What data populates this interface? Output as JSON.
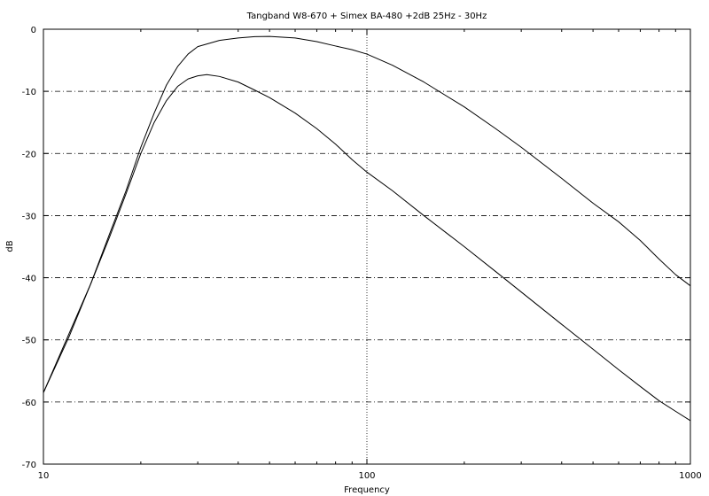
{
  "chart_data": {
    "type": "line",
    "title": "Tangband W8-670 + Simex BA-480 +2dB 25Hz - 30Hz",
    "xlabel": "Frequency",
    "ylabel": "dB",
    "x_scale": "log",
    "xlim": [
      10,
      1000
    ],
    "ylim": [
      -70,
      0
    ],
    "x_ticks": [
      10,
      100,
      1000
    ],
    "y_ticks": [
      0,
      -10,
      -20,
      -30,
      -40,
      -50,
      -60,
      -70
    ],
    "grid": "dash-dot horizontal at each y tick; dotted vertical at 100",
    "legend": "none",
    "series": [
      {
        "color": "#000000",
        "points": [
          [
            10,
            -58.5
          ],
          [
            12,
            -49
          ],
          [
            14,
            -41
          ],
          [
            16,
            -33
          ],
          [
            18,
            -26
          ],
          [
            20,
            -19
          ],
          [
            22,
            -13.5
          ],
          [
            24,
            -9
          ],
          [
            26,
            -6
          ],
          [
            28,
            -4
          ],
          [
            30,
            -2.8
          ],
          [
            35,
            -1.8
          ],
          [
            40,
            -1.4
          ],
          [
            45,
            -1.2
          ],
          [
            50,
            -1.15
          ],
          [
            60,
            -1.4
          ],
          [
            70,
            -2
          ],
          [
            80,
            -2.7
          ],
          [
            90,
            -3.3
          ],
          [
            100,
            -4
          ],
          [
            120,
            -5.8
          ],
          [
            150,
            -8.5
          ],
          [
            200,
            -12.5
          ],
          [
            250,
            -16
          ],
          [
            300,
            -19
          ],
          [
            400,
            -24
          ],
          [
            500,
            -28
          ],
          [
            600,
            -31
          ],
          [
            700,
            -34
          ],
          [
            800,
            -37
          ],
          [
            900,
            -39.5
          ],
          [
            1000,
            -41.3
          ]
        ]
      },
      {
        "color": "#000000",
        "points": [
          [
            10,
            -58.5
          ],
          [
            12,
            -49.5
          ],
          [
            14,
            -41
          ],
          [
            16,
            -33.5
          ],
          [
            18,
            -26.5
          ],
          [
            20,
            -20
          ],
          [
            22,
            -15
          ],
          [
            24,
            -11.5
          ],
          [
            26,
            -9.2
          ],
          [
            28,
            -8
          ],
          [
            30,
            -7.5
          ],
          [
            32,
            -7.3
          ],
          [
            35,
            -7.6
          ],
          [
            40,
            -8.5
          ],
          [
            45,
            -9.8
          ],
          [
            50,
            -11
          ],
          [
            60,
            -13.5
          ],
          [
            70,
            -16
          ],
          [
            80,
            -18.5
          ],
          [
            90,
            -21
          ],
          [
            100,
            -23
          ],
          [
            120,
            -26
          ],
          [
            150,
            -30
          ],
          [
            200,
            -35
          ],
          [
            250,
            -39
          ],
          [
            300,
            -42.3
          ],
          [
            400,
            -47.5
          ],
          [
            500,
            -51.5
          ],
          [
            600,
            -54.8
          ],
          [
            700,
            -57.5
          ],
          [
            800,
            -59.8
          ],
          [
            900,
            -61.5
          ],
          [
            1000,
            -63
          ]
        ]
      }
    ]
  }
}
